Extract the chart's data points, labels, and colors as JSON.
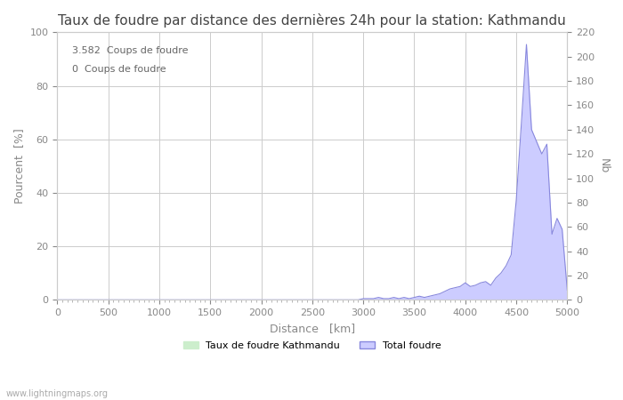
{
  "title": "Taux de foudre par distance des dernières 24h pour la station: Kathmandu",
  "xlabel": "Distance   [km]",
  "ylabel_left": "Pourcent  [%]",
  "ylabel_right": "Nb",
  "annotation1": "3.582  Coups de foudre",
  "annotation2": "0  Coups de foudre",
  "legend_label1": "Taux de foudre Kathmandu",
  "legend_label2": "Total foudre",
  "watermark": "www.lightningmaps.org",
  "xlim": [
    0,
    5000
  ],
  "ylim_left": [
    0,
    100
  ],
  "ylim_right": [
    0,
    220
  ],
  "xticks": [
    0,
    500,
    1000,
    1500,
    2000,
    2500,
    3000,
    3500,
    4000,
    4500,
    5000
  ],
  "yticks_left": [
    0,
    20,
    40,
    60,
    80,
    100
  ],
  "yticks_right": [
    0,
    20,
    40,
    60,
    80,
    100,
    120,
    140,
    160,
    180,
    200,
    220
  ],
  "color_blue_line": "#8888dd",
  "color_blue_fill": "#ccccff",
  "color_green_fill": "#cceecc",
  "background_color": "#ffffff",
  "grid_color": "#cccccc",
  "title_fontsize": 11,
  "label_fontsize": 9,
  "tick_fontsize": 8,
  "total_foudre_x": [
    0,
    50,
    100,
    150,
    200,
    250,
    300,
    350,
    400,
    450,
    500,
    550,
    600,
    650,
    700,
    750,
    800,
    850,
    900,
    950,
    1000,
    1050,
    1100,
    1150,
    1200,
    1250,
    1300,
    1350,
    1400,
    1450,
    1500,
    1550,
    1600,
    1650,
    1700,
    1750,
    1800,
    1850,
    1900,
    1950,
    2000,
    2050,
    2100,
    2150,
    2200,
    2250,
    2300,
    2350,
    2400,
    2450,
    2500,
    2550,
    2600,
    2650,
    2700,
    2750,
    2800,
    2850,
    2900,
    2950,
    3000,
    3050,
    3100,
    3150,
    3200,
    3250,
    3300,
    3350,
    3400,
    3450,
    3500,
    3550,
    3600,
    3650,
    3700,
    3750,
    3800,
    3850,
    3900,
    3950,
    4000,
    4050,
    4100,
    4150,
    4200,
    4250,
    4300,
    4350,
    4400,
    4450,
    4500,
    4550,
    4600,
    4650,
    4700,
    4750,
    4800,
    4850,
    4900,
    4950,
    5000
  ],
  "total_foudre_y": [
    0,
    0,
    0,
    0,
    0,
    0,
    0,
    0,
    0,
    0,
    0,
    0,
    0,
    0,
    0,
    0,
    0,
    0,
    0,
    0,
    0,
    0,
    0,
    0,
    0,
    0,
    0,
    0,
    0,
    0,
    0,
    0,
    0,
    0,
    0,
    0,
    0,
    0,
    0,
    0,
    0,
    0,
    0,
    0,
    0,
    0,
    0,
    0,
    0,
    0,
    0,
    0,
    0,
    0,
    0,
    0,
    0,
    0,
    0,
    0,
    1,
    1,
    1,
    2,
    1,
    1,
    2,
    1,
    2,
    1,
    2,
    3,
    2,
    3,
    4,
    5,
    7,
    9,
    10,
    11,
    14,
    11,
    12,
    14,
    15,
    12,
    18,
    22,
    28,
    37,
    82,
    145,
    210,
    140,
    130,
    120,
    128,
    54,
    67,
    58,
    8
  ]
}
